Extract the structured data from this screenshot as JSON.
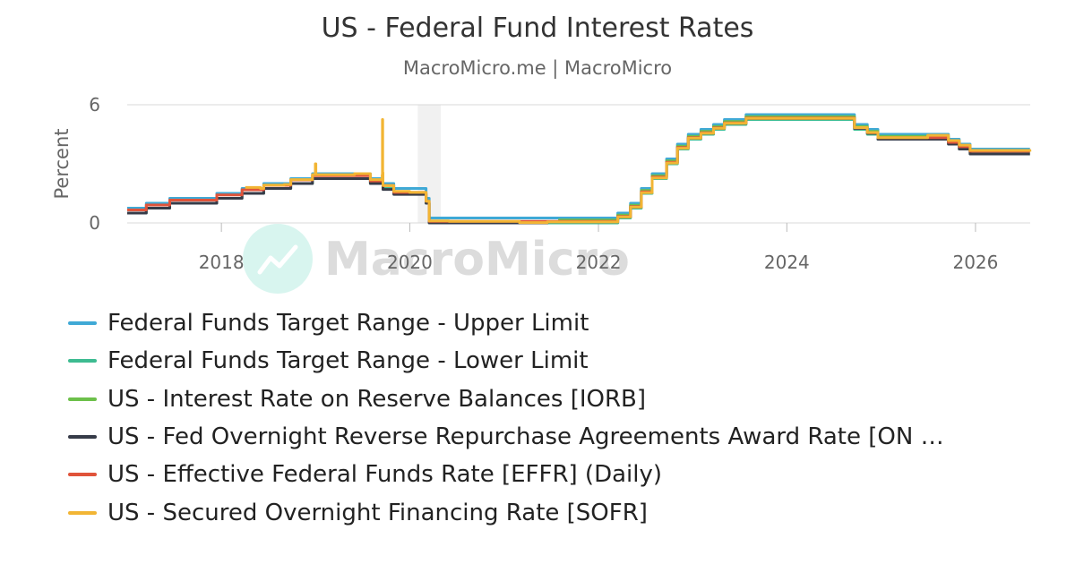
{
  "title": "US - Federal Fund Interest Rates",
  "subtitle": "MacroMicro.me | MacroMicro",
  "watermark": "MacroMicro",
  "chart_data": {
    "type": "line",
    "title": "US - Federal Fund Interest Rates",
    "subtitle": "MacroMicro.me | MacroMicro",
    "ylabel": "Percent",
    "xlim": [
      "2017-01-01",
      "2026-08-01"
    ],
    "ylim": [
      0,
      6
    ],
    "x_ticks": [
      "2018",
      "2020",
      "2022",
      "2024",
      "2026"
    ],
    "y_ticks": [
      "0",
      "6"
    ],
    "grid": "horizontal",
    "legend_position": "bottom",
    "shaded_period": [
      "2020-02-01",
      "2020-04-30"
    ],
    "series": [
      {
        "name": "Federal Funds Target Range - Upper Limit",
        "color": "#3fa9d6",
        "points": [
          [
            "2017-01-01",
            0.75
          ],
          [
            "2017-03-16",
            1.0
          ],
          [
            "2017-06-15",
            1.25
          ],
          [
            "2017-12-14",
            1.5
          ],
          [
            "2018-03-22",
            1.75
          ],
          [
            "2018-06-14",
            2.0
          ],
          [
            "2018-09-27",
            2.25
          ],
          [
            "2018-12-20",
            2.5
          ],
          [
            "2019-08-01",
            2.25
          ],
          [
            "2019-09-19",
            2.0
          ],
          [
            "2019-10-31",
            1.75
          ],
          [
            "2020-03-04",
            1.25
          ],
          [
            "2020-03-16",
            0.25
          ],
          [
            "2022-03-17",
            0.5
          ],
          [
            "2022-05-05",
            1.0
          ],
          [
            "2022-06-16",
            1.75
          ],
          [
            "2022-07-28",
            2.5
          ],
          [
            "2022-09-22",
            3.25
          ],
          [
            "2022-11-03",
            4.0
          ],
          [
            "2022-12-15",
            4.5
          ],
          [
            "2023-02-02",
            4.75
          ],
          [
            "2023-03-23",
            5.0
          ],
          [
            "2023-05-04",
            5.25
          ],
          [
            "2023-07-27",
            5.5
          ],
          [
            "2024-09-19",
            5.0
          ],
          [
            "2024-11-08",
            4.75
          ],
          [
            "2024-12-19",
            4.5
          ],
          [
            "2025-09-18",
            4.25
          ],
          [
            "2025-10-30",
            4.0
          ],
          [
            "2025-12-11",
            3.75
          ],
          [
            "2026-07-31",
            3.75
          ]
        ]
      },
      {
        "name": "Federal Funds Target Range - Lower Limit",
        "color": "#3dbb91",
        "points": [
          [
            "2017-01-01",
            0.5
          ],
          [
            "2017-03-16",
            0.75
          ],
          [
            "2017-06-15",
            1.0
          ],
          [
            "2017-12-14",
            1.25
          ],
          [
            "2018-03-22",
            1.5
          ],
          [
            "2018-06-14",
            1.75
          ],
          [
            "2018-09-27",
            2.0
          ],
          [
            "2018-12-20",
            2.25
          ],
          [
            "2019-08-01",
            2.0
          ],
          [
            "2019-09-19",
            1.75
          ],
          [
            "2019-10-31",
            1.5
          ],
          [
            "2020-03-04",
            1.0
          ],
          [
            "2020-03-16",
            0.0
          ],
          [
            "2022-03-17",
            0.25
          ],
          [
            "2022-05-05",
            0.75
          ],
          [
            "2022-06-16",
            1.5
          ],
          [
            "2022-07-28",
            2.25
          ],
          [
            "2022-09-22",
            3.0
          ],
          [
            "2022-11-03",
            3.75
          ],
          [
            "2022-12-15",
            4.25
          ],
          [
            "2023-02-02",
            4.5
          ],
          [
            "2023-03-23",
            4.75
          ],
          [
            "2023-05-04",
            5.0
          ],
          [
            "2023-07-27",
            5.25
          ],
          [
            "2024-09-19",
            4.75
          ],
          [
            "2024-11-08",
            4.5
          ],
          [
            "2024-12-19",
            4.25
          ],
          [
            "2025-09-18",
            4.0
          ],
          [
            "2025-10-30",
            3.75
          ],
          [
            "2025-12-11",
            3.5
          ],
          [
            "2026-07-31",
            3.5
          ]
        ]
      },
      {
        "name": "US - Interest Rate on Reserve Balances [IORB]",
        "color": "#6cc04a",
        "points": [
          [
            "2021-07-29",
            0.15
          ],
          [
            "2022-03-17",
            0.4
          ],
          [
            "2022-05-05",
            0.9
          ],
          [
            "2022-06-16",
            1.65
          ],
          [
            "2022-07-28",
            2.4
          ],
          [
            "2022-09-22",
            3.15
          ],
          [
            "2022-11-03",
            3.9
          ],
          [
            "2022-12-15",
            4.4
          ],
          [
            "2023-02-02",
            4.65
          ],
          [
            "2023-03-23",
            4.9
          ],
          [
            "2023-05-04",
            5.15
          ],
          [
            "2023-07-27",
            5.4
          ],
          [
            "2024-09-19",
            4.9
          ],
          [
            "2024-11-08",
            4.65
          ],
          [
            "2024-12-19",
            4.4
          ],
          [
            "2025-09-18",
            4.15
          ],
          [
            "2025-10-30",
            3.9
          ],
          [
            "2025-12-11",
            3.65
          ],
          [
            "2026-07-31",
            3.65
          ]
        ]
      },
      {
        "name": "US - Fed Overnight Reverse Repurchase Agreements Award Rate [ON …",
        "color": "#363b48",
        "points": [
          [
            "2017-01-01",
            0.5
          ],
          [
            "2017-03-16",
            0.75
          ],
          [
            "2017-06-15",
            1.0
          ],
          [
            "2017-12-14",
            1.25
          ],
          [
            "2018-03-22",
            1.5
          ],
          [
            "2018-06-14",
            1.75
          ],
          [
            "2018-09-27",
            2.0
          ],
          [
            "2018-12-20",
            2.25
          ],
          [
            "2019-08-01",
            2.0
          ],
          [
            "2019-09-19",
            1.7
          ],
          [
            "2019-10-31",
            1.45
          ],
          [
            "2020-03-04",
            1.0
          ],
          [
            "2020-03-16",
            0.0
          ],
          [
            "2021-06-17",
            0.05
          ],
          [
            "2022-03-17",
            0.3
          ],
          [
            "2022-05-05",
            0.8
          ],
          [
            "2022-06-16",
            1.55
          ],
          [
            "2022-07-28",
            2.3
          ],
          [
            "2022-09-22",
            3.05
          ],
          [
            "2022-11-03",
            3.8
          ],
          [
            "2022-12-15",
            4.3
          ],
          [
            "2023-02-02",
            4.55
          ],
          [
            "2023-03-23",
            4.8
          ],
          [
            "2023-05-04",
            5.05
          ],
          [
            "2023-07-27",
            5.3
          ],
          [
            "2024-09-19",
            4.8
          ],
          [
            "2024-11-08",
            4.55
          ],
          [
            "2024-12-19",
            4.25
          ],
          [
            "2025-09-18",
            4.0
          ],
          [
            "2025-10-30",
            3.75
          ],
          [
            "2025-12-11",
            3.5
          ],
          [
            "2026-07-31",
            3.5
          ]
        ]
      },
      {
        "name": "US - Effective Federal Funds Rate [EFFR] (Daily)",
        "color": "#e0533a",
        "points": [
          [
            "2017-01-01",
            0.66
          ],
          [
            "2017-03-16",
            0.91
          ],
          [
            "2017-06-15",
            1.16
          ],
          [
            "2017-12-14",
            1.42
          ],
          [
            "2018-03-22",
            1.68
          ],
          [
            "2018-06-14",
            1.91
          ],
          [
            "2018-09-27",
            2.18
          ],
          [
            "2018-12-20",
            2.4
          ],
          [
            "2019-08-01",
            2.13
          ],
          [
            "2019-09-19",
            1.9
          ],
          [
            "2019-10-31",
            1.55
          ],
          [
            "2020-03-04",
            1.1
          ],
          [
            "2020-03-16",
            0.08
          ],
          [
            "2021-06-17",
            0.08
          ],
          [
            "2022-03-17",
            0.33
          ],
          [
            "2022-05-05",
            0.83
          ],
          [
            "2022-06-16",
            1.58
          ],
          [
            "2022-07-28",
            2.33
          ],
          [
            "2022-09-22",
            3.08
          ],
          [
            "2022-11-03",
            3.83
          ],
          [
            "2022-12-15",
            4.33
          ],
          [
            "2023-02-02",
            4.58
          ],
          [
            "2023-03-23",
            4.83
          ],
          [
            "2023-05-04",
            5.08
          ],
          [
            "2023-07-27",
            5.33
          ],
          [
            "2024-09-19",
            4.83
          ],
          [
            "2024-11-08",
            4.58
          ],
          [
            "2024-12-19",
            4.33
          ],
          [
            "2025-09-18",
            4.09
          ],
          [
            "2025-10-30",
            3.87
          ],
          [
            "2025-12-11",
            3.64
          ],
          [
            "2026-07-31",
            3.64
          ]
        ]
      },
      {
        "name": "US - Secured Overnight Financing Rate [SOFR]",
        "color": "#f2b534",
        "points": [
          [
            "2018-04-03",
            1.8
          ],
          [
            "2018-06-01",
            1.75
          ],
          [
            "2018-06-14",
            1.92
          ],
          [
            "2018-09-01",
            1.95
          ],
          [
            "2018-09-27",
            2.2
          ],
          [
            "2018-12-20",
            2.45
          ],
          [
            "2018-12-31",
            3.0
          ],
          [
            "2019-01-02",
            2.45
          ],
          [
            "2019-05-01",
            2.45
          ],
          [
            "2019-06-01",
            2.5
          ],
          [
            "2019-08-01",
            2.2
          ],
          [
            "2019-09-16",
            2.43
          ],
          [
            "2019-09-17",
            5.25
          ],
          [
            "2019-09-18",
            2.55
          ],
          [
            "2019-09-19",
            1.9
          ],
          [
            "2019-10-31",
            1.6
          ],
          [
            "2019-12-31",
            1.55
          ],
          [
            "2020-03-04",
            1.1
          ],
          [
            "2020-03-16",
            0.1
          ],
          [
            "2020-06-01",
            0.08
          ],
          [
            "2021-03-01",
            0.02
          ],
          [
            "2021-06-17",
            0.05
          ],
          [
            "2022-03-17",
            0.3
          ],
          [
            "2022-05-05",
            0.8
          ],
          [
            "2022-06-16",
            1.53
          ],
          [
            "2022-07-28",
            2.28
          ],
          [
            "2022-09-22",
            3.04
          ],
          [
            "2022-11-03",
            3.79
          ],
          [
            "2022-12-15",
            4.3
          ],
          [
            "2023-02-02",
            4.55
          ],
          [
            "2023-03-23",
            4.8
          ],
          [
            "2023-05-04",
            5.06
          ],
          [
            "2023-07-27",
            5.31
          ],
          [
            "2024-09-19",
            4.84
          ],
          [
            "2024-11-08",
            4.59
          ],
          [
            "2024-12-19",
            4.33
          ],
          [
            "2025-06-30",
            4.45
          ],
          [
            "2025-09-18",
            4.18
          ],
          [
            "2025-10-30",
            3.95
          ],
          [
            "2025-12-11",
            3.68
          ],
          [
            "2026-07-31",
            3.62
          ]
        ]
      }
    ]
  }
}
